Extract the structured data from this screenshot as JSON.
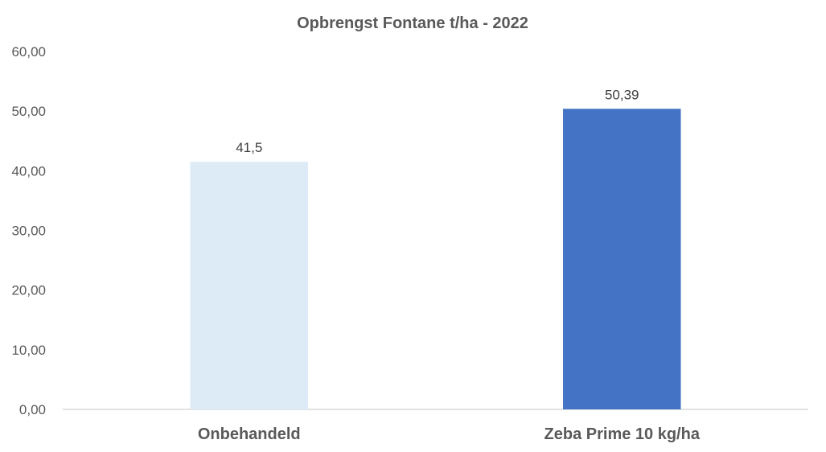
{
  "chart_data": {
    "type": "bar",
    "title": "Opbrengst Fontane t/ha - 2022",
    "xlabel": "",
    "ylabel": "",
    "categories": [
      "Onbehandeld",
      "Zeba Prime 10 kg/ha"
    ],
    "values": [
      41.5,
      50.39
    ],
    "data_labels": [
      "41,5",
      "50,39"
    ],
    "bar_colors": [
      "#DDEBF7",
      "#4472C4"
    ],
    "ylim": [
      0,
      60
    ],
    "yticks": [
      0,
      10,
      20,
      30,
      40,
      50,
      60
    ],
    "ytick_labels": [
      "0,00",
      "10,00",
      "20,00",
      "30,00",
      "40,00",
      "50,00",
      "60,00"
    ],
    "grid": false,
    "legend": "none"
  }
}
